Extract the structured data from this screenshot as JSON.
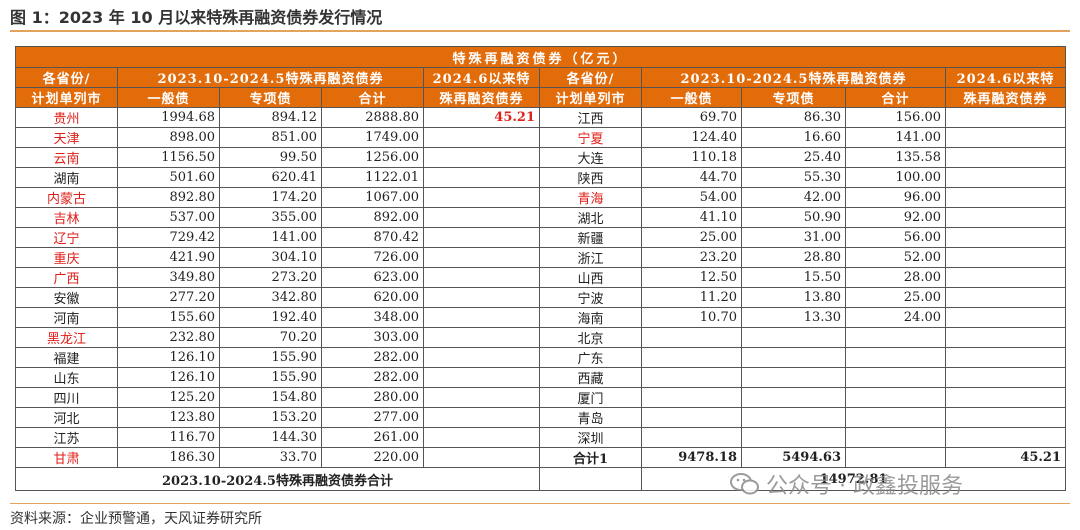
{
  "caption": "图 1：2023 年 10 月以来特殊再融资债券发行情况",
  "table_title": "特殊再融资债券（亿元）",
  "headers": {
    "province_top": "各省份/",
    "province_bottom": "计划单列市",
    "period_group": "2023.10-2024.5特殊再融资债券",
    "general": "一般债",
    "special": "专项债",
    "subtotal": "合计",
    "june_top": "2024.6以来特",
    "june_bottom": "殊再融资债券"
  },
  "rows": [
    {
      "l": {
        "name": "贵州",
        "red": true,
        "general": "1994.68",
        "special": "894.12",
        "total": "2888.80",
        "june": "45.21"
      },
      "r": {
        "name": "江西",
        "red": false,
        "general": "69.70",
        "special": "86.30",
        "total": "156.00",
        "june": ""
      }
    },
    {
      "l": {
        "name": "天津",
        "red": true,
        "general": "898.00",
        "special": "851.00",
        "total": "1749.00",
        "june": ""
      },
      "r": {
        "name": "宁夏",
        "red": true,
        "general": "124.40",
        "special": "16.60",
        "total": "141.00",
        "june": ""
      }
    },
    {
      "l": {
        "name": "云南",
        "red": true,
        "general": "1156.50",
        "special": "99.50",
        "total": "1256.00",
        "june": ""
      },
      "r": {
        "name": "大连",
        "red": false,
        "general": "110.18",
        "special": "25.40",
        "total": "135.58",
        "june": ""
      }
    },
    {
      "l": {
        "name": "湖南",
        "red": false,
        "general": "501.60",
        "special": "620.41",
        "total": "1122.01",
        "june": ""
      },
      "r": {
        "name": "陕西",
        "red": false,
        "general": "44.70",
        "special": "55.30",
        "total": "100.00",
        "june": ""
      }
    },
    {
      "l": {
        "name": "内蒙古",
        "red": true,
        "general": "892.80",
        "special": "174.20",
        "total": "1067.00",
        "june": ""
      },
      "r": {
        "name": "青海",
        "red": true,
        "general": "54.00",
        "special": "42.00",
        "total": "96.00",
        "june": ""
      }
    },
    {
      "l": {
        "name": "吉林",
        "red": true,
        "general": "537.00",
        "special": "355.00",
        "total": "892.00",
        "june": ""
      },
      "r": {
        "name": "湖北",
        "red": false,
        "general": "41.10",
        "special": "50.90",
        "total": "92.00",
        "june": ""
      }
    },
    {
      "l": {
        "name": "辽宁",
        "red": true,
        "general": "729.42",
        "special": "141.00",
        "total": "870.42",
        "june": ""
      },
      "r": {
        "name": "新疆",
        "red": false,
        "general": "25.00",
        "special": "31.00",
        "total": "56.00",
        "june": ""
      }
    },
    {
      "l": {
        "name": "重庆",
        "red": true,
        "general": "421.90",
        "special": "304.10",
        "total": "726.00",
        "june": ""
      },
      "r": {
        "name": "浙江",
        "red": false,
        "general": "23.20",
        "special": "28.80",
        "total": "52.00",
        "june": ""
      }
    },
    {
      "l": {
        "name": "广西",
        "red": true,
        "general": "349.80",
        "special": "273.20",
        "total": "623.00",
        "june": ""
      },
      "r": {
        "name": "山西",
        "red": false,
        "general": "12.50",
        "special": "15.50",
        "total": "28.00",
        "june": ""
      }
    },
    {
      "l": {
        "name": "安徽",
        "red": false,
        "general": "277.20",
        "special": "342.80",
        "total": "620.00",
        "june": ""
      },
      "r": {
        "name": "宁波",
        "red": false,
        "general": "11.20",
        "special": "13.80",
        "total": "25.00",
        "june": ""
      }
    },
    {
      "l": {
        "name": "河南",
        "red": false,
        "general": "155.60",
        "special": "192.40",
        "total": "348.00",
        "june": ""
      },
      "r": {
        "name": "海南",
        "red": false,
        "general": "10.70",
        "special": "13.30",
        "total": "24.00",
        "june": ""
      }
    },
    {
      "l": {
        "name": "黑龙江",
        "red": true,
        "general": "232.80",
        "special": "70.20",
        "total": "303.00",
        "june": ""
      },
      "r": {
        "name": "北京",
        "red": false,
        "general": "",
        "special": "",
        "total": "",
        "june": ""
      }
    },
    {
      "l": {
        "name": "福建",
        "red": false,
        "general": "126.10",
        "special": "155.90",
        "total": "282.00",
        "june": ""
      },
      "r": {
        "name": "广东",
        "red": false,
        "general": "",
        "special": "",
        "total": "",
        "june": ""
      }
    },
    {
      "l": {
        "name": "山东",
        "red": false,
        "general": "126.10",
        "special": "155.90",
        "total": "282.00",
        "june": ""
      },
      "r": {
        "name": "西藏",
        "red": false,
        "general": "",
        "special": "",
        "total": "",
        "june": ""
      }
    },
    {
      "l": {
        "name": "四川",
        "red": false,
        "general": "125.20",
        "special": "154.80",
        "total": "280.00",
        "june": ""
      },
      "r": {
        "name": "厦门",
        "red": false,
        "general": "",
        "special": "",
        "total": "",
        "june": ""
      }
    },
    {
      "l": {
        "name": "河北",
        "red": false,
        "general": "123.80",
        "special": "153.20",
        "total": "277.00",
        "june": ""
      },
      "r": {
        "name": "青岛",
        "red": false,
        "general": "",
        "special": "",
        "total": "",
        "june": ""
      }
    },
    {
      "l": {
        "name": "江苏",
        "red": false,
        "general": "116.70",
        "special": "144.30",
        "total": "261.00",
        "june": ""
      },
      "r": {
        "name": "深圳",
        "red": false,
        "general": "",
        "special": "",
        "total": "",
        "june": ""
      }
    },
    {
      "l": {
        "name": "甘肃",
        "red": true,
        "general": "186.30",
        "special": "33.70",
        "total": "220.00",
        "june": ""
      },
      "r": {
        "name": "合计1",
        "red": false,
        "bold": true,
        "general": "9478.18",
        "special": "5494.63",
        "total": "",
        "june": "45.21"
      }
    }
  ],
  "total_row": {
    "label": "2023.10-2024.5特殊再融资债券合计",
    "value": "14972.81"
  },
  "source": "资料来源：企业预警通，天风证券研究所",
  "watermark": "公众号 · 政鑫投服务"
}
